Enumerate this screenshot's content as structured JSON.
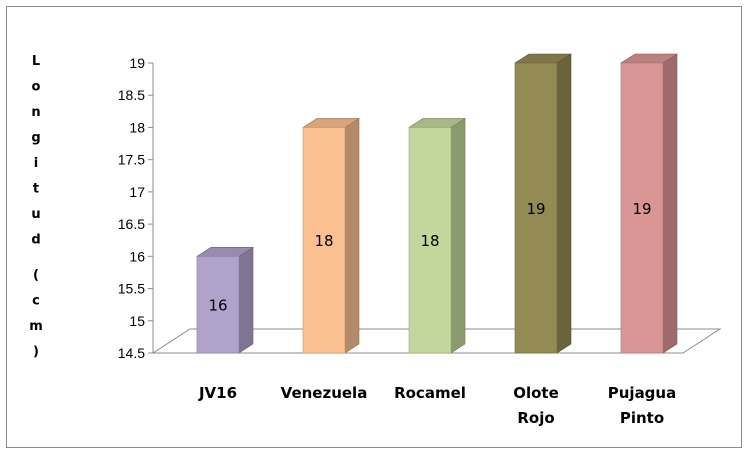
{
  "chart_data": {
    "type": "bar",
    "style": "3d-column",
    "ylabel": "Longitud (cm)",
    "ylim": [
      14.5,
      19
    ],
    "ytick_step": 0.5,
    "yticks": [
      "14.5",
      "15",
      "15.5",
      "16",
      "16.5",
      "17",
      "17.5",
      "18",
      "18.5",
      "19"
    ],
    "grid": false,
    "legend": "none",
    "categories": [
      {
        "lines": [
          "JV16"
        ]
      },
      {
        "lines": [
          "Venezuela"
        ]
      },
      {
        "lines": [
          "Rocamel"
        ]
      },
      {
        "lines": [
          "Olote",
          "Rojo"
        ]
      },
      {
        "lines": [
          "Pujagua",
          "Pinto"
        ]
      }
    ],
    "values": [
      16,
      18,
      18,
      19,
      19
    ],
    "data_labels": [
      "16",
      "18",
      "18",
      "19",
      "19"
    ],
    "colors": [
      "#b1a2cb",
      "#fac090",
      "#c3d69b",
      "#948a54",
      "#d99694"
    ]
  }
}
